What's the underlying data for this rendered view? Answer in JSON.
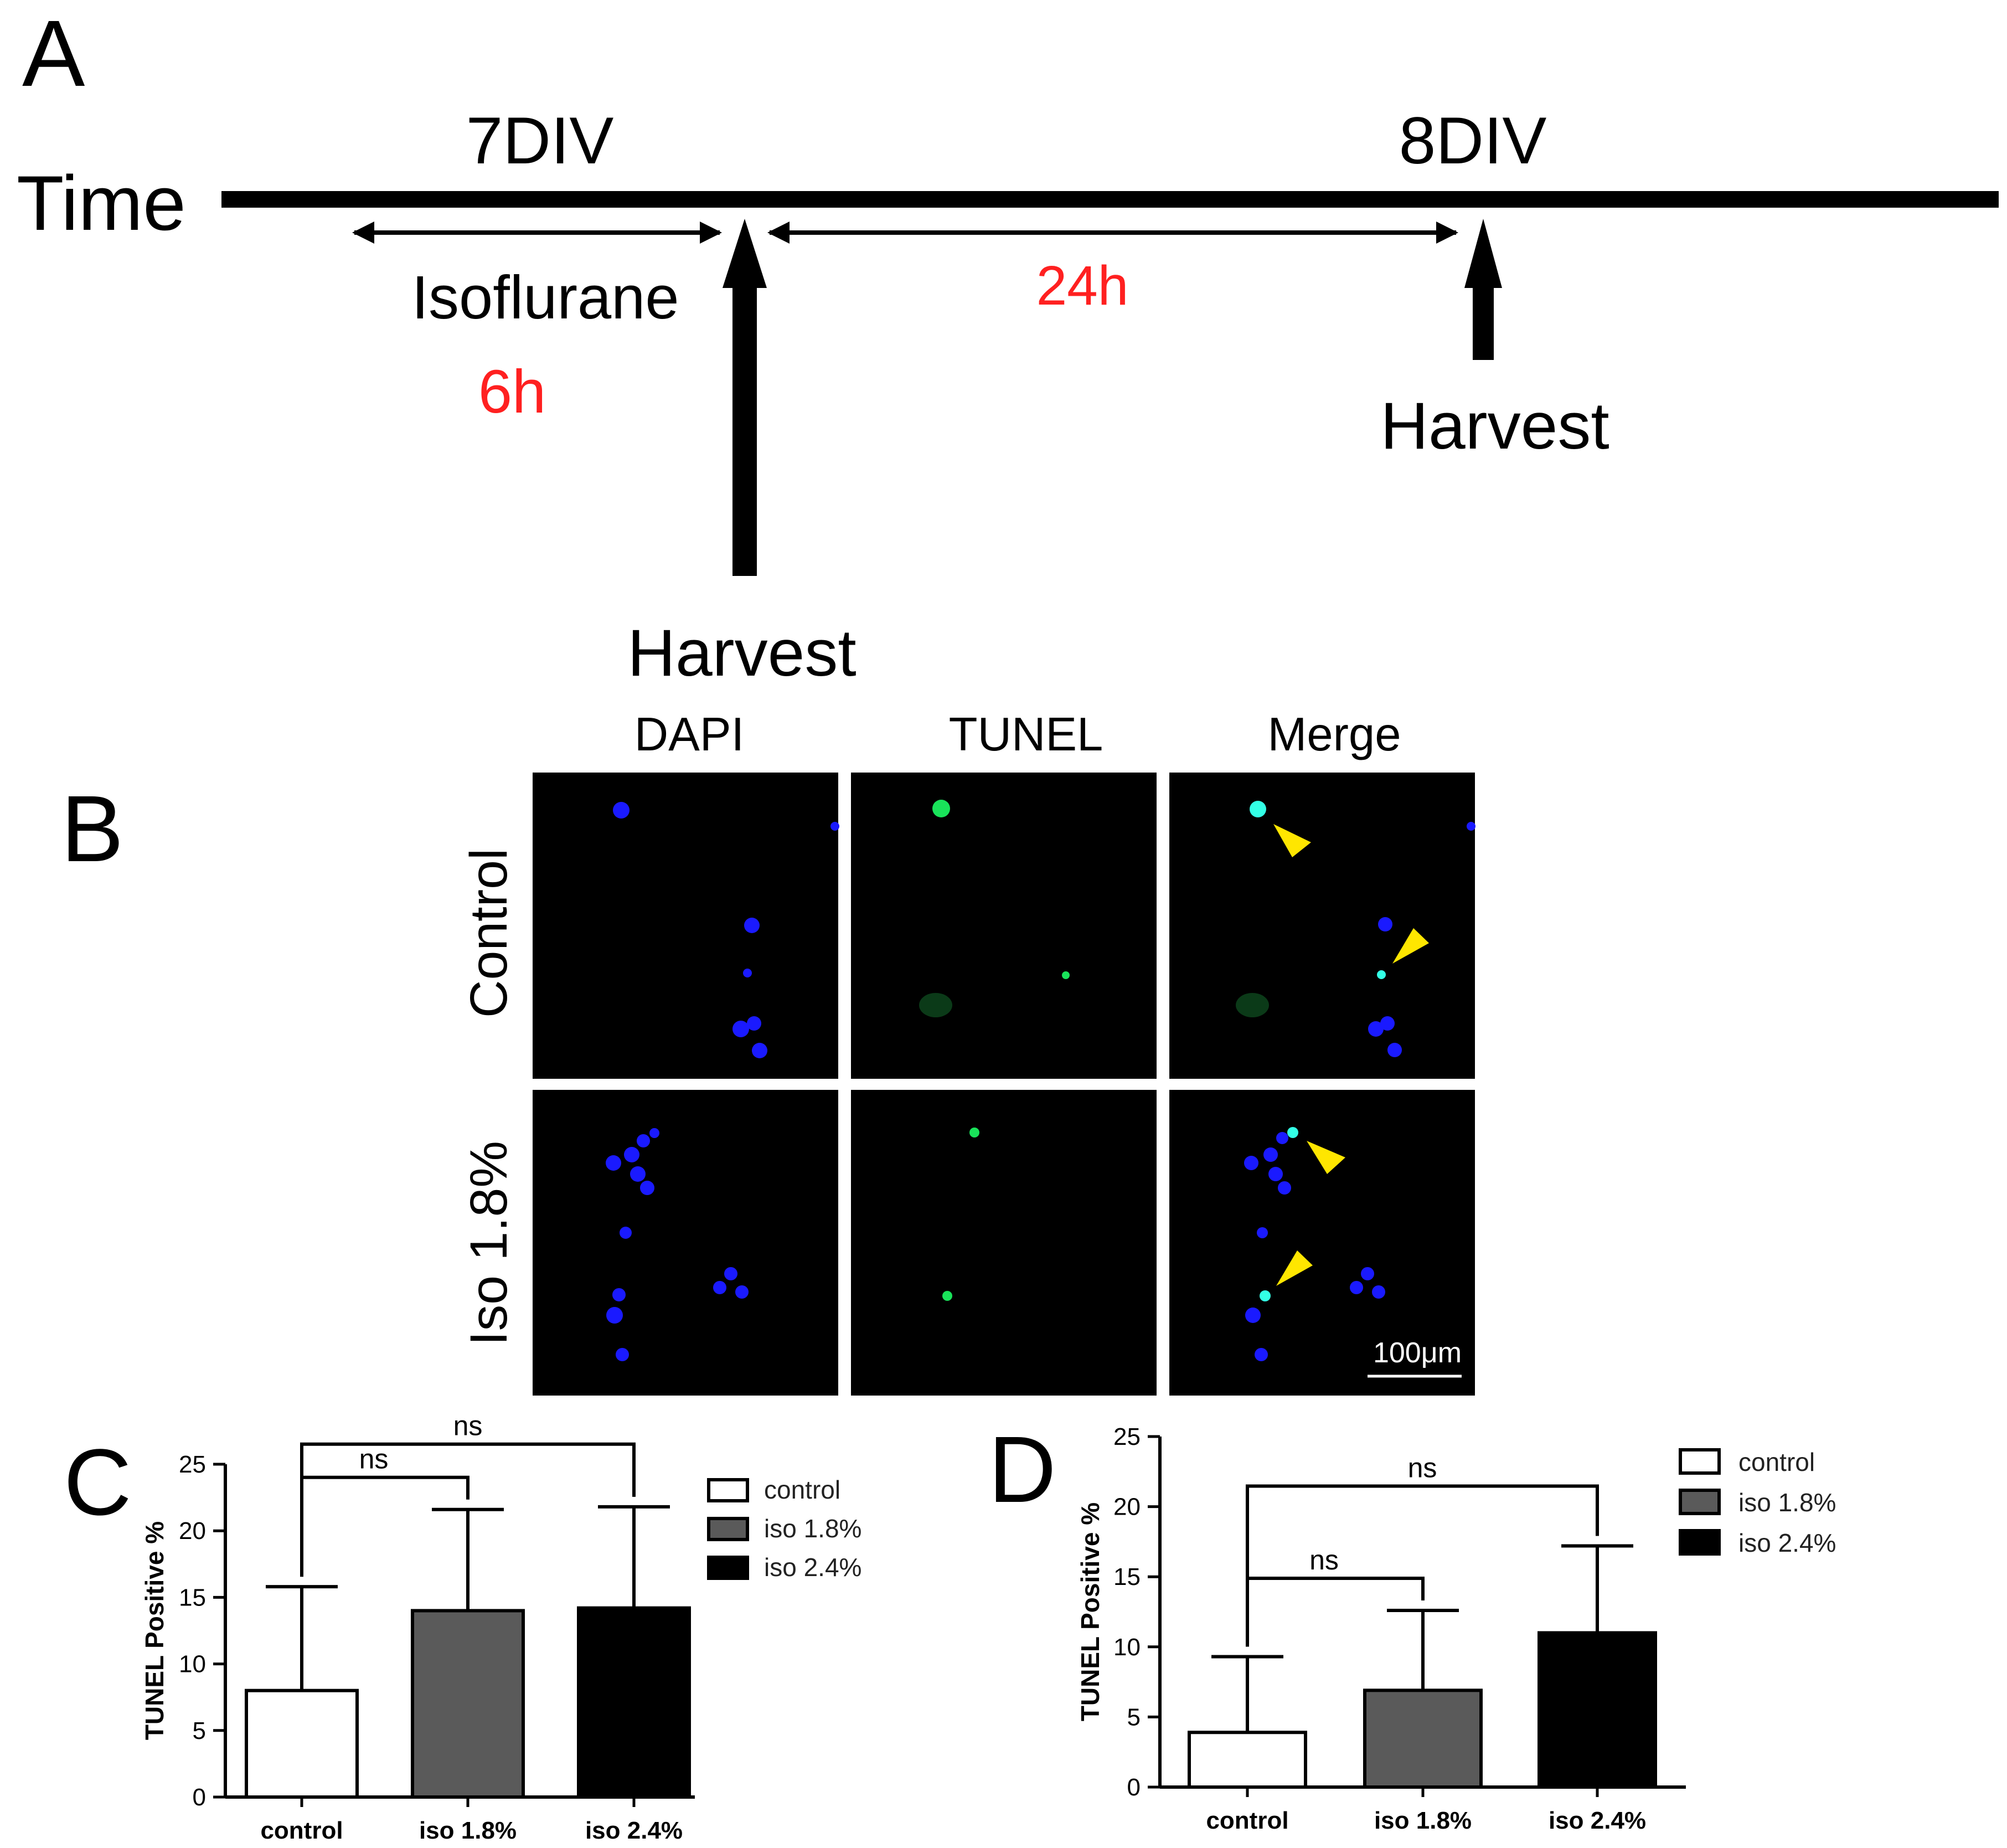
{
  "panel_a": {
    "letter": "A",
    "time_label": "Time",
    "div7_label": "7DIV",
    "div8_label": "8DIV",
    "isoflurane_label": "Isoflurane",
    "duration_6h": "6h",
    "duration_24h": "24h",
    "harvest_first": "Harvest",
    "harvest_second": "Harvest",
    "highlight_color": "#ff2020"
  },
  "panel_b": {
    "letter": "B",
    "column_headers": [
      "DAPI",
      "TUNEL",
      "Merge"
    ],
    "row_labels": [
      "Control",
      "Iso 1.8%"
    ],
    "scale_bar_label": "100μm",
    "stain_colors": {
      "dapi": "#1a1aff",
      "tunel": "#19e35a",
      "merge": "#33ffe6",
      "arrowhead": "#ffe600"
    }
  },
  "chart_data": [
    {
      "panel": "C",
      "type": "bar",
      "ylabel": "TUNEL Positive %",
      "xlabel": "",
      "ylim": [
        0,
        25
      ],
      "yticks": [
        0,
        5,
        10,
        15,
        20,
        25
      ],
      "categories": [
        "control",
        "iso 1.8%",
        "iso 2.4%"
      ],
      "values": [
        8.0,
        14.0,
        14.2
      ],
      "errors": [
        7.8,
        7.6,
        7.6
      ],
      "bar_colors": [
        "#ffffff",
        "#5a5a5a",
        "#000000"
      ],
      "legend": [
        "control",
        "iso 1.8%",
        "iso 2.4%"
      ],
      "legend_position": "top-right",
      "significance": [
        {
          "from": 0,
          "to": 1,
          "label": "ns"
        },
        {
          "from": 0,
          "to": 2,
          "label": "ns"
        }
      ]
    },
    {
      "panel": "D",
      "type": "bar",
      "ylabel": "TUNEL Positive %",
      "xlabel": "",
      "ylim": [
        0,
        25
      ],
      "yticks": [
        0,
        5,
        10,
        15,
        20,
        25
      ],
      "categories": [
        "control",
        "iso 1.8%",
        "iso 2.4%"
      ],
      "values": [
        3.9,
        6.9,
        11.0
      ],
      "errors": [
        5.4,
        5.7,
        6.2
      ],
      "bar_colors": [
        "#ffffff",
        "#5a5a5a",
        "#000000"
      ],
      "legend": [
        "control",
        "iso 1.8%",
        "iso 2.4%"
      ],
      "legend_position": "top-right",
      "significance": [
        {
          "from": 0,
          "to": 1,
          "label": "ns"
        },
        {
          "from": 0,
          "to": 2,
          "label": "ns"
        }
      ]
    }
  ]
}
